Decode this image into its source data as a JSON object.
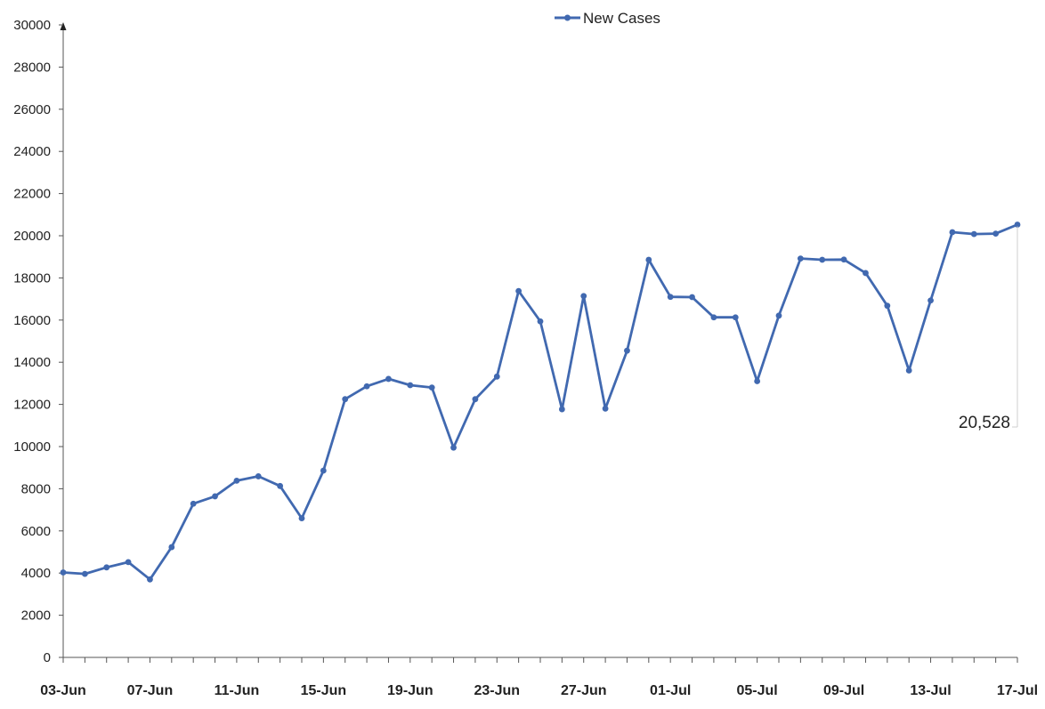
{
  "chart_data": {
    "type": "line",
    "title": "",
    "xlabel": "",
    "ylabel": "",
    "ylim": [
      0,
      30000
    ],
    "yticks": [
      0,
      2000,
      4000,
      6000,
      8000,
      10000,
      12000,
      14000,
      16000,
      18000,
      20000,
      22000,
      24000,
      26000,
      28000,
      30000
    ],
    "x_tick_labels": [
      "03-Jun",
      "07-Jun",
      "11-Jun",
      "15-Jun",
      "19-Jun",
      "23-Jun",
      "27-Jun",
      "01-Jul",
      "05-Jul",
      "09-Jul",
      "13-Jul",
      "17-Jul"
    ],
    "x": [
      "03-Jun",
      "04-Jun",
      "05-Jun",
      "06-Jun",
      "07-Jun",
      "08-Jun",
      "09-Jun",
      "10-Jun",
      "11-Jun",
      "12-Jun",
      "13-Jun",
      "14-Jun",
      "15-Jun",
      "16-Jun",
      "17-Jun",
      "18-Jun",
      "19-Jun",
      "20-Jun",
      "21-Jun",
      "22-Jun",
      "23-Jun",
      "24-Jun",
      "25-Jun",
      "26-Jun",
      "27-Jun",
      "28-Jun",
      "29-Jun",
      "30-Jun",
      "01-Jul",
      "02-Jul",
      "03-Jul",
      "04-Jul",
      "05-Jul",
      "06-Jul",
      "07-Jul",
      "08-Jul",
      "09-Jul",
      "10-Jul",
      "11-Jul",
      "12-Jul",
      "13-Jul",
      "14-Jul",
      "15-Jul",
      "16-Jul",
      "17-Jul"
    ],
    "series": [
      {
        "name": "New Cases",
        "color": "#4169b0",
        "values": [
          4030,
          3960,
          4270,
          4520,
          3700,
          5230,
          7290,
          7640,
          8380,
          8590,
          8130,
          6600,
          8860,
          12250,
          12860,
          13210,
          12910,
          12800,
          9950,
          12250,
          13320,
          17380,
          15940,
          11770,
          17140,
          11800,
          14550,
          18860,
          17100,
          17090,
          16130,
          16130,
          13100,
          16210,
          18920,
          18860,
          18870,
          18230,
          16680,
          13610,
          16930,
          20170,
          20080,
          20100,
          20528
        ]
      }
    ],
    "legend": {
      "position": "top-center",
      "label": "New Cases"
    },
    "grid": false,
    "annotation": {
      "text": "20,528",
      "target_index": 44
    }
  }
}
